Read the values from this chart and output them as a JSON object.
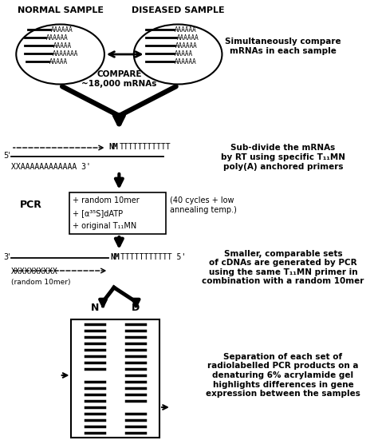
{
  "bg_color": "#ffffff",
  "normal_sample_label": "NORMAL SAMPLE",
  "diseased_sample_label": "DISEASED SAMPLE",
  "compare_label": "COMPARE\n~18,000 mRNAs",
  "right_text1": "Simultaneously compare\nmRNAs in each sample",
  "right_text2": "Sub-divide the mRNAs\nby RT using specific T₁₁MN\npoly(A) anchored primers",
  "right_text3": "Smaller, comparable sets\nof cDNAs are generated by PCR\nusing the same T₁₁MN primer in\ncombination with a random 10mer",
  "right_text4": "Separation of each set of\nradiolabelled PCR products on a\ndenaturing 6% acrylamide gel\nhighlights differences in gene\nexpression between the samples",
  "pcr_label": "PCR",
  "pcr_box_lines": [
    "+ random 10mer",
    "+ [α³⁵S]dATP",
    "+ original T₁₁MN"
  ],
  "pcr_cycles_text": "(40 cycles + low\nannealing temp.)",
  "gel_N_label": "N",
  "gel_D_label": "D"
}
